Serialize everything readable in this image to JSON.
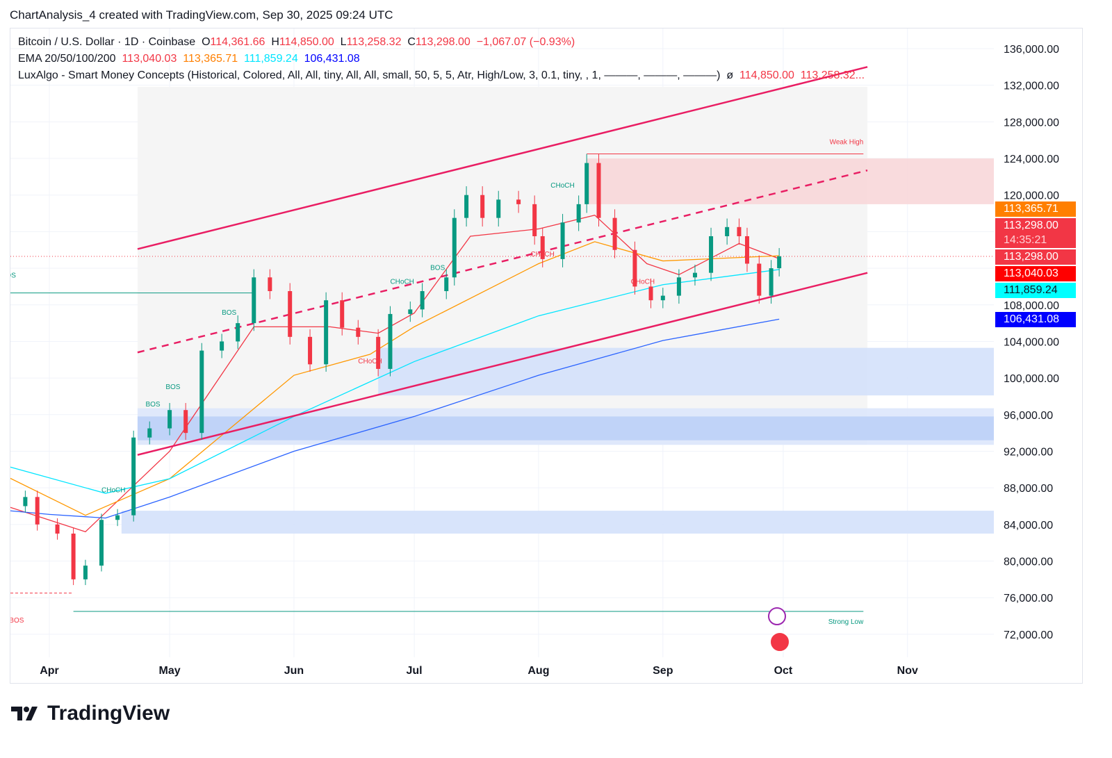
{
  "header": {
    "title": "ChartAnalysis_4 created with TradingView.com, Sep 30, 2025 09:24 UTC"
  },
  "legend": {
    "symbol": "Bitcoin / U.S. Dollar · 1D · Coinbase",
    "o_label": "O",
    "o": "114,361.66",
    "h_label": "H",
    "h": "114,850.00",
    "l_label": "L",
    "l": "113,258.32",
    "c_label": "C",
    "c": "113,298.00",
    "change": "−1,067.07 (−0.93%)",
    "ema_name": "EMA 20/50/100/200",
    "ema20": "113,040.03",
    "ema50": "113,365.71",
    "ema100": "111,859.24",
    "ema200": "106,431.08",
    "smc": "LuxAlgo - Smart Money Concepts (Historical, Colored, All, All, tiny, All, All, small, 50, 5, 5, Atr, High/Low, 3, 0.1, tiny, , 1, ———, ———, ———)",
    "smc_symbol": "ø",
    "smc_v1": "114,850.00",
    "smc_v2": "113,258.32..."
  },
  "price_labels": [
    {
      "text": "113,365.71",
      "bg": "#ff7f00",
      "fg": "#ffffff"
    },
    {
      "text": "113,298.00",
      "bg": "#f23645",
      "fg": "#ffffff"
    },
    {
      "text": "14:35:21",
      "bg": "#f23645",
      "fg": "#ffd0d4"
    },
    {
      "text": "113,298.00",
      "bg": "#f23645",
      "fg": "#ffffff"
    },
    {
      "text": "113,040.03",
      "bg": "#ff0000",
      "fg": "#ffffff"
    },
    {
      "text": "111,859.24",
      "bg": "#00ffff",
      "fg": "#131722"
    },
    {
      "text": "106,431.08",
      "bg": "#0000ff",
      "fg": "#ffffff"
    }
  ],
  "footer": {
    "logo": "TradingView"
  },
  "colors": {
    "up": "#089981",
    "down": "#f23645",
    "ema20": "#f23645",
    "ema50": "#ff9800",
    "ema100": "#00e5ff",
    "ema200": "#2962ff",
    "channel": "#e91e63"
  },
  "chart_data": {
    "type": "candlestick",
    "ylim": [
      70000,
      138000
    ],
    "yticks": [
      "136,000.00",
      "132,000.00",
      "128,000.00",
      "124,000.00",
      "120,000.00",
      "108,000.00",
      "104,000.00",
      "100,000.00",
      "96,000.00",
      "92,000.00",
      "88,000.00",
      "84,000.00",
      "80,000.00",
      "76,000.00",
      "72,000.00"
    ],
    "ytick_values": [
      136000,
      132000,
      128000,
      124000,
      120000,
      108000,
      104000,
      100000,
      96000,
      92000,
      88000,
      84000,
      80000,
      76000,
      72000
    ],
    "xticks": [
      {
        "label": "Apr",
        "date": "2025-04-01"
      },
      {
        "label": "May",
        "date": "2025-05-01"
      },
      {
        "label": "Jun",
        "date": "2025-06-01"
      },
      {
        "label": "Jul",
        "date": "2025-07-01"
      },
      {
        "label": "Aug",
        "date": "2025-08-01"
      },
      {
        "label": "Sep",
        "date": "2025-09-01"
      },
      {
        "label": "Oct",
        "date": "2025-10-01"
      },
      {
        "label": "Nov",
        "date": "2025-11-01"
      }
    ],
    "closes": [
      [
        "2025-03-22",
        86000
      ],
      [
        "2025-03-26",
        87000
      ],
      [
        "2025-03-29",
        84000
      ],
      [
        "2025-04-03",
        83000
      ],
      [
        "2025-04-07",
        78000
      ],
      [
        "2025-04-10",
        79500
      ],
      [
        "2025-04-14",
        84500
      ],
      [
        "2025-04-18",
        85000
      ],
      [
        "2025-04-22",
        93500
      ],
      [
        "2025-04-26",
        94500
      ],
      [
        "2025-05-01",
        96500
      ],
      [
        "2025-05-05",
        94000
      ],
      [
        "2025-05-09",
        103000
      ],
      [
        "2025-05-14",
        104000
      ],
      [
        "2025-05-18",
        106000
      ],
      [
        "2025-05-22",
        111000
      ],
      [
        "2025-05-26",
        109500
      ],
      [
        "2025-05-31",
        104500
      ],
      [
        "2025-06-05",
        101500
      ],
      [
        "2025-06-09",
        108500
      ],
      [
        "2025-06-13",
        105500
      ],
      [
        "2025-06-17",
        104500
      ],
      [
        "2025-06-22",
        101000
      ],
      [
        "2025-06-25",
        107000
      ],
      [
        "2025-06-30",
        107500
      ],
      [
        "2025-07-03",
        109500
      ],
      [
        "2025-07-09",
        111000
      ],
      [
        "2025-07-11",
        117500
      ],
      [
        "2025-07-14",
        120000
      ],
      [
        "2025-07-18",
        117500
      ],
      [
        "2025-07-22",
        119500
      ],
      [
        "2025-07-27",
        119000
      ],
      [
        "2025-07-31",
        115500
      ],
      [
        "2025-08-02",
        113000
      ],
      [
        "2025-08-07",
        117000
      ],
      [
        "2025-08-11",
        119000
      ],
      [
        "2025-08-13",
        123500
      ],
      [
        "2025-08-16",
        117500
      ],
      [
        "2025-08-20",
        114000
      ],
      [
        "2025-08-25",
        110000
      ],
      [
        "2025-08-29",
        108500
      ],
      [
        "2025-09-01",
        109000
      ],
      [
        "2025-09-05",
        111000
      ],
      [
        "2025-09-09",
        111500
      ],
      [
        "2025-09-13",
        115500
      ],
      [
        "2025-09-17",
        116500
      ],
      [
        "2025-09-20",
        115500
      ],
      [
        "2025-09-22",
        112500
      ],
      [
        "2025-09-25",
        109000
      ],
      [
        "2025-09-28",
        112000
      ],
      [
        "2025-09-30",
        113298
      ]
    ],
    "ema": {
      "20": [
        [
          "2025-03-22",
          85900
        ],
        [
          "2025-04-10",
          83200
        ],
        [
          "2025-05-01",
          92000
        ],
        [
          "2025-05-22",
          105600
        ],
        [
          "2025-06-10",
          105600
        ],
        [
          "2025-06-22",
          104900
        ],
        [
          "2025-07-01",
          107100
        ],
        [
          "2025-07-15",
          115500
        ],
        [
          "2025-08-01",
          116300
        ],
        [
          "2025-08-15",
          117800
        ],
        [
          "2025-08-28",
          112500
        ],
        [
          "2025-09-05",
          111300
        ],
        [
          "2025-09-20",
          114700
        ],
        [
          "2025-09-30",
          113040.03
        ]
      ],
      "50": [
        [
          "2025-03-22",
          89100
        ],
        [
          "2025-04-10",
          85000
        ],
        [
          "2025-05-01",
          89000
        ],
        [
          "2025-06-01",
          100300
        ],
        [
          "2025-06-20",
          102600
        ],
        [
          "2025-07-01",
          105600
        ],
        [
          "2025-08-01",
          112500
        ],
        [
          "2025-08-15",
          114900
        ],
        [
          "2025-09-01",
          112800
        ],
        [
          "2025-09-30",
          113365.71
        ]
      ],
      "100": [
        [
          "2025-03-22",
          90300
        ],
        [
          "2025-04-15",
          87400
        ],
        [
          "2025-05-01",
          89000
        ],
        [
          "2025-06-01",
          95800
        ],
        [
          "2025-07-01",
          101800
        ],
        [
          "2025-08-01",
          106800
        ],
        [
          "2025-09-01",
          110200
        ],
        [
          "2025-09-30",
          111859.24
        ]
      ],
      "200": [
        [
          "2025-03-22",
          85500
        ],
        [
          "2025-04-01",
          85100
        ],
        [
          "2025-04-15",
          84700
        ],
        [
          "2025-05-01",
          87000
        ],
        [
          "2025-06-01",
          92000
        ],
        [
          "2025-07-01",
          95800
        ],
        [
          "2025-08-01",
          100300
        ],
        [
          "2025-09-01",
          104100
        ],
        [
          "2025-09-30",
          106431.08
        ]
      ]
    },
    "channel": {
      "upper": [
        [
          "2025-04-23",
          114100
        ],
        [
          "2025-10-22",
          134000
        ]
      ],
      "middle": [
        [
          "2025-04-23",
          102800
        ],
        [
          "2025-10-22",
          122700
        ]
      ],
      "lower": [
        [
          "2025-04-23",
          91600
        ],
        [
          "2025-10-22",
          111500
        ]
      ]
    },
    "zones": [
      {
        "from": "2025-08-13",
        "top": 124000,
        "bottom": 119000,
        "color": "#f8d7d9"
      },
      {
        "from": "2025-06-22",
        "top": 103300,
        "bottom": 98100,
        "color": "#d4e1fb"
      },
      {
        "from": "2025-04-23",
        "top": 96700,
        "bottom": 92700,
        "color": "#dde7fc"
      },
      {
        "from": "2025-04-23",
        "top": 95800,
        "bottom": 93200,
        "color": "#bcd0f7"
      },
      {
        "from": "2025-04-19",
        "top": 85500,
        "bottom": 83000,
        "color": "#d4e1fb"
      }
    ],
    "levels": [
      {
        "label": "Weak High",
        "price": 124500,
        "from": "2025-08-13",
        "to": "2025-10-21",
        "color": "#f23645"
      },
      {
        "label": "Strong Low",
        "price": 74500,
        "from": "2025-04-07",
        "to": "2025-10-21",
        "color": "#089981"
      }
    ],
    "structure_labels": [
      {
        "text": "BOS",
        "date": "2025-03-20",
        "price": 111000,
        "color": "#089981"
      },
      {
        "text": "BOS",
        "date": "2025-03-22",
        "price": 73300,
        "color": "#f23645"
      },
      {
        "text": "CHoCH",
        "date": "2025-04-14",
        "price": 87500,
        "color": "#089981"
      },
      {
        "text": "BOS",
        "date": "2025-04-25",
        "price": 96900,
        "color": "#089981"
      },
      {
        "text": "BOS",
        "date": "2025-04-30",
        "price": 98800,
        "color": "#089981"
      },
      {
        "text": "BOS",
        "date": "2025-05-14",
        "price": 106900,
        "color": "#089981"
      },
      {
        "text": "CHoCH",
        "date": "2025-06-17",
        "price": 101600,
        "color": "#f23645"
      },
      {
        "text": "CHoCH",
        "date": "2025-06-25",
        "price": 110300,
        "color": "#089981"
      },
      {
        "text": "BOS",
        "date": "2025-07-05",
        "price": 111800,
        "color": "#089981"
      },
      {
        "text": "CHoCH",
        "date": "2025-07-30",
        "price": 113300,
        "color": "#f23645"
      },
      {
        "text": "CHoCH",
        "date": "2025-08-04",
        "price": 120800,
        "color": "#089981"
      },
      {
        "text": "CHoCH",
        "date": "2025-08-24",
        "price": 110300,
        "color": "#f23645"
      }
    ],
    "current_price": 113298
  }
}
